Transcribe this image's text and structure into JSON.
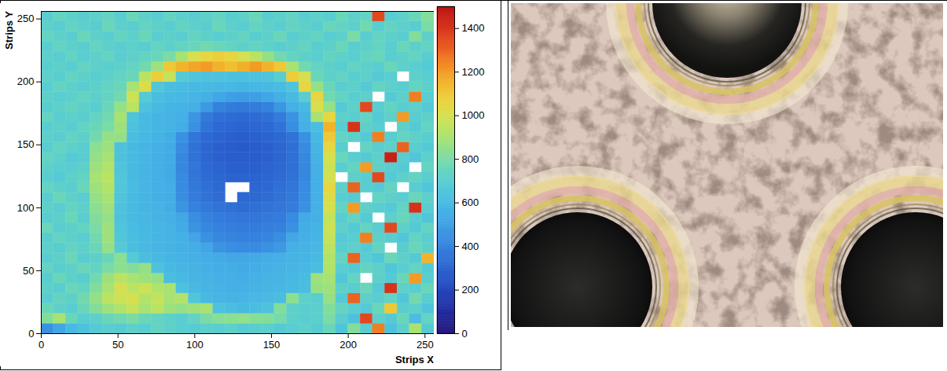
{
  "chart_data": {
    "type": "heatmap",
    "xlabel": "Strips X",
    "ylabel": "Strips Y",
    "xlim": [
      0,
      256
    ],
    "ylim": [
      0,
      256
    ],
    "xticks": [
      0,
      50,
      100,
      150,
      200,
      250
    ],
    "yticks": [
      0,
      50,
      100,
      150,
      200,
      250
    ],
    "x_edges": [
      0,
      8,
      16,
      24,
      32,
      40,
      48,
      56,
      64,
      72,
      80,
      88,
      96,
      104,
      112,
      120,
      128,
      136,
      144,
      152,
      160,
      168,
      176,
      184,
      192,
      200,
      208,
      216,
      224,
      232,
      240,
      248,
      256
    ],
    "y_edges": [
      0,
      8,
      16,
      24,
      32,
      40,
      48,
      56,
      64,
      72,
      80,
      88,
      96,
      104,
      112,
      120,
      128,
      136,
      144,
      152,
      160,
      168,
      176,
      184,
      192,
      200,
      208,
      216,
      224,
      232,
      240,
      248,
      256
    ],
    "zlim": [
      0,
      1500
    ],
    "zticks": [
      0,
      200,
      400,
      600,
      800,
      1000,
      1200,
      1400
    ],
    "values": [
      [
        450,
        520,
        600,
        640,
        680,
        700,
        690,
        720,
        700,
        740,
        720,
        700,
        690,
        710,
        700,
        720,
        690,
        700,
        710,
        680,
        700,
        720,
        690,
        760,
        650,
        820,
        700,
        1250,
        640,
        720,
        900,
        680
      ],
      [
        820,
        900,
        760,
        700,
        720,
        760,
        780,
        800,
        760,
        740,
        720,
        700,
        740,
        800,
        830,
        840,
        850,
        830,
        820,
        790,
        720,
        700,
        710,
        800,
        700,
        640,
        1350,
        720,
        680,
        760,
        620,
        740
      ],
      [
        760,
        720,
        700,
        760,
        820,
        880,
        920,
        960,
        900,
        940,
        880,
        860,
        880,
        900,
        640,
        620,
        600,
        620,
        640,
        820,
        720,
        700,
        710,
        820,
        740,
        700,
        680,
        760,
        1100,
        700,
        720,
        650
      ],
      [
        700,
        740,
        720,
        780,
        860,
        940,
        980,
        1000,
        920,
        960,
        900,
        920,
        660,
        600,
        580,
        570,
        580,
        590,
        600,
        620,
        840,
        720,
        700,
        860,
        680,
        1300,
        720,
        700,
        740,
        660,
        780,
        700
      ],
      [
        720,
        700,
        760,
        740,
        820,
        900,
        1000,
        940,
        980,
        920,
        900,
        640,
        600,
        580,
        570,
        560,
        560,
        570,
        580,
        590,
        600,
        620,
        860,
        880,
        720,
        700,
        760,
        680,
        1400,
        720,
        700,
        760
      ],
      [
        700,
        760,
        720,
        700,
        780,
        880,
        940,
        900,
        880,
        860,
        620,
        600,
        580,
        570,
        560,
        560,
        550,
        560,
        570,
        580,
        590,
        610,
        880,
        900,
        660,
        740,
        null,
        720,
        680,
        760,
        1200,
        700
      ],
      [
        740,
        700,
        720,
        760,
        740,
        800,
        840,
        820,
        860,
        640,
        600,
        580,
        570,
        560,
        550,
        550,
        540,
        550,
        560,
        570,
        580,
        590,
        620,
        920,
        700,
        680,
        740,
        720,
        660,
        700,
        740,
        680
      ],
      [
        700,
        720,
        760,
        700,
        720,
        760,
        840,
        680,
        620,
        600,
        580,
        570,
        560,
        550,
        540,
        530,
        530,
        540,
        550,
        560,
        570,
        580,
        600,
        920,
        740,
        1300,
        700,
        660,
        760,
        720,
        680,
        1150
      ],
      [
        720,
        700,
        740,
        720,
        760,
        860,
        680,
        620,
        600,
        580,
        570,
        560,
        550,
        520,
        460,
        440,
        430,
        430,
        450,
        480,
        560,
        570,
        590,
        940,
        700,
        720,
        680,
        740,
        null,
        700,
        760,
        720
      ],
      [
        700,
        740,
        720,
        700,
        780,
        880,
        660,
        620,
        600,
        580,
        570,
        560,
        520,
        450,
        420,
        410,
        400,
        400,
        410,
        440,
        530,
        560,
        580,
        960,
        680,
        700,
        1250,
        720,
        700,
        660,
        740,
        700
      ],
      [
        760,
        700,
        720,
        740,
        800,
        880,
        650,
        610,
        590,
        580,
        570,
        540,
        460,
        420,
        400,
        390,
        380,
        380,
        390,
        400,
        450,
        550,
        570,
        980,
        720,
        680,
        740,
        700,
        1350,
        720,
        680,
        740
      ],
      [
        700,
        720,
        760,
        700,
        820,
        860,
        640,
        600,
        590,
        570,
        560,
        530,
        440,
        400,
        380,
        370,
        360,
        360,
        370,
        380,
        430,
        540,
        560,
        960,
        700,
        740,
        680,
        null,
        720,
        760,
        700,
        660
      ],
      [
        720,
        700,
        740,
        720,
        840,
        880,
        640,
        600,
        580,
        570,
        550,
        460,
        400,
        370,
        350,
        340,
        330,
        340,
        350,
        360,
        380,
        450,
        560,
        1000,
        740,
        1200,
        720,
        700,
        680,
        740,
        1400,
        700
      ],
      [
        700,
        760,
        720,
        700,
        860,
        900,
        650,
        600,
        580,
        560,
        550,
        440,
        380,
        350,
        330,
        null,
        320,
        320,
        330,
        350,
        370,
        440,
        560,
        1020,
        700,
        680,
        null,
        740,
        720,
        700,
        760,
        720
      ],
      [
        740,
        720,
        700,
        760,
        880,
        920,
        660,
        610,
        580,
        560,
        550,
        430,
        370,
        340,
        320,
        null,
        null,
        310,
        320,
        340,
        360,
        430,
        560,
        1050,
        720,
        1300,
        700,
        680,
        740,
        null,
        700,
        660
      ],
      [
        700,
        680,
        720,
        740,
        900,
        940,
        660,
        600,
        580,
        560,
        540,
        430,
        360,
        330,
        310,
        300,
        300,
        300,
        310,
        330,
        350,
        420,
        560,
        1000,
        null,
        720,
        700,
        1350,
        680,
        720,
        740,
        700
      ],
      [
        720,
        700,
        700,
        720,
        880,
        920,
        650,
        600,
        580,
        560,
        540,
        420,
        360,
        320,
        300,
        290,
        290,
        290,
        300,
        320,
        340,
        420,
        560,
        980,
        700,
        740,
        1200,
        720,
        700,
        680,
        null,
        740
      ],
      [
        740,
        720,
        680,
        700,
        860,
        900,
        640,
        600,
        580,
        560,
        540,
        420,
        350,
        310,
        290,
        280,
        280,
        280,
        290,
        310,
        340,
        420,
        570,
        1000,
        760,
        700,
        680,
        720,
        1450,
        700,
        660,
        720
      ],
      [
        700,
        740,
        720,
        700,
        840,
        880,
        640,
        600,
        580,
        560,
        540,
        430,
        350,
        310,
        290,
        280,
        270,
        280,
        290,
        310,
        340,
        430,
        580,
        1050,
        700,
        null,
        740,
        700,
        720,
        1300,
        700,
        680
      ],
      [
        720,
        700,
        740,
        720,
        780,
        860,
        860,
        620,
        590,
        570,
        550,
        450,
        360,
        320,
        300,
        290,
        280,
        290,
        300,
        320,
        350,
        450,
        590,
        1100,
        740,
        720,
        680,
        1250,
        700,
        740,
        720,
        700
      ],
      [
        700,
        720,
        700,
        740,
        760,
        800,
        880,
        640,
        600,
        580,
        570,
        550,
        450,
        350,
        320,
        310,
        300,
        310,
        320,
        350,
        440,
        560,
        620,
        1150,
        700,
        1400,
        720,
        700,
        null,
        720,
        680,
        740
      ],
      [
        740,
        700,
        720,
        700,
        740,
        780,
        900,
        650,
        600,
        580,
        570,
        560,
        470,
        370,
        340,
        330,
        320,
        330,
        340,
        380,
        460,
        570,
        900,
        1050,
        720,
        700,
        740,
        680,
        720,
        1200,
        700,
        720
      ],
      [
        700,
        720,
        740,
        720,
        700,
        760,
        860,
        940,
        640,
        600,
        580,
        570,
        560,
        480,
        400,
        380,
        370,
        380,
        400,
        470,
        560,
        600,
        1000,
        860,
        680,
        720,
        1350,
        700,
        740,
        700,
        720,
        680
      ],
      [
        720,
        700,
        720,
        740,
        720,
        740,
        780,
        980,
        680,
        620,
        600,
        590,
        580,
        560,
        520,
        500,
        490,
        500,
        520,
        560,
        600,
        700,
        1050,
        780,
        740,
        700,
        720,
        null,
        680,
        720,
        1250,
        700
      ],
      [
        700,
        740,
        720,
        700,
        720,
        740,
        760,
        900,
        1020,
        660,
        620,
        610,
        600,
        600,
        590,
        590,
        580,
        590,
        600,
        610,
        650,
        1050,
        860,
        760,
        700,
        720,
        680,
        740,
        720,
        700,
        740,
        720
      ],
      [
        720,
        700,
        740,
        720,
        700,
        720,
        740,
        760,
        940,
        1080,
        960,
        680,
        650,
        640,
        640,
        630,
        630,
        640,
        650,
        700,
        1080,
        1000,
        760,
        720,
        740,
        700,
        720,
        680,
        700,
        null,
        720,
        700
      ],
      [
        700,
        720,
        700,
        740,
        720,
        700,
        720,
        740,
        780,
        880,
        1100,
        1150,
        1180,
        1200,
        1150,
        1120,
        1160,
        1200,
        1150,
        1100,
        900,
        780,
        740,
        720,
        700,
        740,
        720,
        700,
        760,
        720,
        700,
        680
      ],
      [
        720,
        700,
        740,
        700,
        720,
        740,
        700,
        720,
        740,
        760,
        800,
        900,
        1000,
        1050,
        1080,
        1060,
        1000,
        940,
        860,
        780,
        740,
        720,
        700,
        740,
        720,
        700,
        740,
        760,
        700,
        720,
        740,
        700
      ],
      [
        700,
        740,
        720,
        700,
        740,
        720,
        700,
        720,
        700,
        740,
        720,
        740,
        760,
        780,
        760,
        740,
        720,
        740,
        720,
        700,
        720,
        740,
        700,
        720,
        760,
        700,
        720,
        740,
        700,
        760,
        720,
        740
      ],
      [
        740,
        720,
        700,
        760,
        720,
        700,
        740,
        720,
        760,
        700,
        720,
        700,
        740,
        720,
        700,
        720,
        740,
        700,
        720,
        760,
        700,
        720,
        740,
        700,
        720,
        800,
        700,
        740,
        720,
        700,
        820,
        720
      ],
      [
        720,
        700,
        740,
        720,
        700,
        760,
        720,
        700,
        740,
        720,
        700,
        740,
        720,
        700,
        760,
        720,
        700,
        740,
        720,
        700,
        740,
        720,
        700,
        760,
        740,
        720,
        780,
        700,
        740,
        720,
        700,
        800
      ],
      [
        700,
        740,
        720,
        700,
        720,
        740,
        700,
        760,
        720,
        700,
        740,
        720,
        700,
        720,
        740,
        700,
        720,
        760,
        700,
        720,
        740,
        700,
        720,
        700,
        760,
        720,
        740,
        1350,
        700,
        720,
        760,
        820
      ]
    ]
  }
}
